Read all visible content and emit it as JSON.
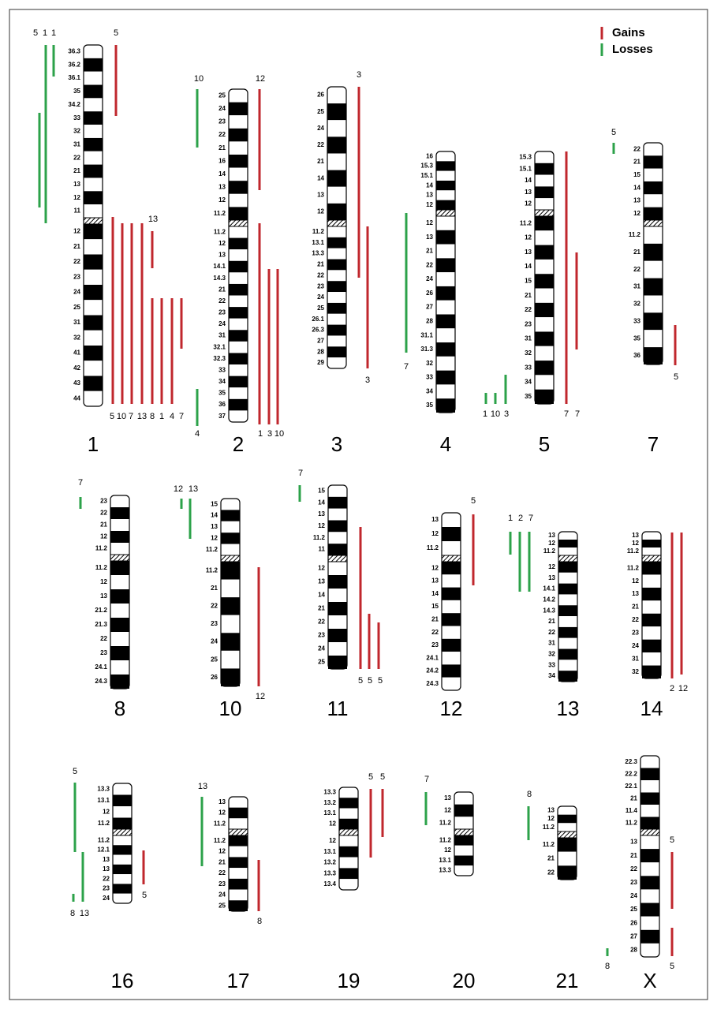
{
  "legend": [
    "Gains",
    "Losses"
  ],
  "chromosomes": [
    {
      "name": "1",
      "bands": [
        "36.3",
        "36.2",
        "36.1",
        "35",
        "34.2",
        "33",
        "32",
        "31",
        "22",
        "21",
        "13",
        "12",
        "11",
        "12",
        "21",
        "22",
        "23",
        "24",
        "25",
        "31",
        "32",
        "41",
        "42",
        "43",
        "44"
      ],
      "labels": [
        "5",
        "1",
        "1",
        "5",
        "13",
        "5",
        "10",
        "7",
        "13",
        "8",
        "1",
        "4",
        "7"
      ]
    },
    {
      "name": "2",
      "bands": [
        "25",
        "24",
        "23",
        "22",
        "21",
        "16",
        "14",
        "13",
        "12",
        "11.2",
        "11.2",
        "12",
        "13",
        "14.1",
        "14.3",
        "21",
        "22",
        "23",
        "24",
        "31",
        "32.1",
        "32.3",
        "33",
        "34",
        "35",
        "36",
        "37"
      ],
      "labels": [
        "10",
        "12",
        "4",
        "1",
        "3",
        "10"
      ]
    },
    {
      "name": "3",
      "bands": [
        "26",
        "25",
        "24",
        "22",
        "21",
        "14",
        "13",
        "12",
        "11.2",
        "13.1",
        "13.3",
        "21",
        "22",
        "23",
        "24",
        "25",
        "26.1",
        "26.3",
        "27",
        "28",
        "29"
      ],
      "labels": [
        "3",
        "3"
      ]
    },
    {
      "name": "4",
      "bands": [
        "16",
        "15.3",
        "15.1",
        "14",
        "13",
        "12",
        "12",
        "13",
        "21",
        "22",
        "24",
        "26",
        "27",
        "28",
        "31.1",
        "31.3",
        "32",
        "33",
        "34",
        "35"
      ],
      "labels": [
        "7"
      ]
    },
    {
      "name": "5",
      "bands": [
        "15.3",
        "15.1",
        "14",
        "13",
        "12",
        "11.2",
        "12",
        "13",
        "14",
        "15",
        "21",
        "22",
        "23",
        "31",
        "32",
        "33",
        "34",
        "35"
      ],
      "labels": [
        "7",
        "7",
        "1",
        "10",
        "3"
      ]
    },
    {
      "name": "7",
      "bands": [
        "22",
        "21",
        "15",
        "14",
        "13",
        "12",
        "11.2",
        "21",
        "22",
        "31",
        "32",
        "33",
        "35",
        "36"
      ],
      "labels": [
        "5",
        "5"
      ]
    },
    {
      "name": "8",
      "bands": [
        "23",
        "22",
        "21",
        "12",
        "11.2",
        "11.2",
        "12",
        "13",
        "21.2",
        "21.3",
        "22",
        "23",
        "24.1",
        "24.3"
      ],
      "labels": [
        "7"
      ]
    },
    {
      "name": "10",
      "bands": [
        "15",
        "14",
        "13",
        "12",
        "11.2",
        "11.2",
        "21",
        "22",
        "23",
        "24",
        "25",
        "26"
      ],
      "labels": [
        "12",
        "13",
        "12"
      ]
    },
    {
      "name": "11",
      "bands": [
        "15",
        "14",
        "13",
        "12",
        "11.2",
        "11",
        "12",
        "13",
        "14",
        "21",
        "22",
        "23",
        "24",
        "25"
      ],
      "labels": [
        "7",
        "5",
        "5",
        "5"
      ]
    },
    {
      "name": "12",
      "bands": [
        "13",
        "12",
        "11.2",
        "12",
        "13",
        "14",
        "15",
        "21",
        "22",
        "23",
        "24.1",
        "24.2",
        "24.3"
      ],
      "labels": [
        "5"
      ]
    },
    {
      "name": "13",
      "bands": [
        "13",
        "12",
        "11.2",
        "12",
        "13",
        "14.1",
        "14.2",
        "14.3",
        "21",
        "22",
        "31",
        "32",
        "33",
        "34"
      ],
      "labels": [
        "1",
        "2",
        "7"
      ]
    },
    {
      "name": "14",
      "bands": [
        "13",
        "12",
        "11.2",
        "11.2",
        "12",
        "13",
        "21",
        "22",
        "23",
        "24",
        "31",
        "32"
      ],
      "labels": [
        "2",
        "12"
      ]
    },
    {
      "name": "16",
      "bands": [
        "13.3",
        "13.1",
        "12",
        "11.2",
        "11.2",
        "12.1",
        "13",
        "13",
        "22",
        "23",
        "24"
      ],
      "labels": [
        "5",
        "8",
        "13",
        "5"
      ]
    },
    {
      "name": "17",
      "bands": [
        "13",
        "12",
        "11.2",
        "11.2",
        "12",
        "21",
        "22",
        "23",
        "24",
        "25"
      ],
      "labels": [
        "13",
        "8"
      ]
    },
    {
      "name": "19",
      "bands": [
        "13.3",
        "13.2",
        "13.1",
        "12",
        "12",
        "13.1",
        "13.2",
        "13.3",
        "13.4"
      ],
      "labels": [
        "5",
        "5"
      ]
    },
    {
      "name": "20",
      "bands": [
        "13",
        "12",
        "11.2",
        "11.2",
        "12",
        "13.1",
        "13.3"
      ],
      "labels": [
        "7"
      ]
    },
    {
      "name": "21",
      "bands": [
        "13",
        "12",
        "11.2",
        "11.2",
        "21",
        "22"
      ],
      "labels": [
        "8"
      ]
    },
    {
      "name": "X",
      "bands": [
        "22.3",
        "22.2",
        "22.1",
        "21",
        "11.4",
        "11.2",
        "13",
        "21",
        "22",
        "23",
        "24",
        "25",
        "26",
        "27",
        "28"
      ],
      "labels": [
        "5",
        "5",
        "8"
      ]
    }
  ]
}
